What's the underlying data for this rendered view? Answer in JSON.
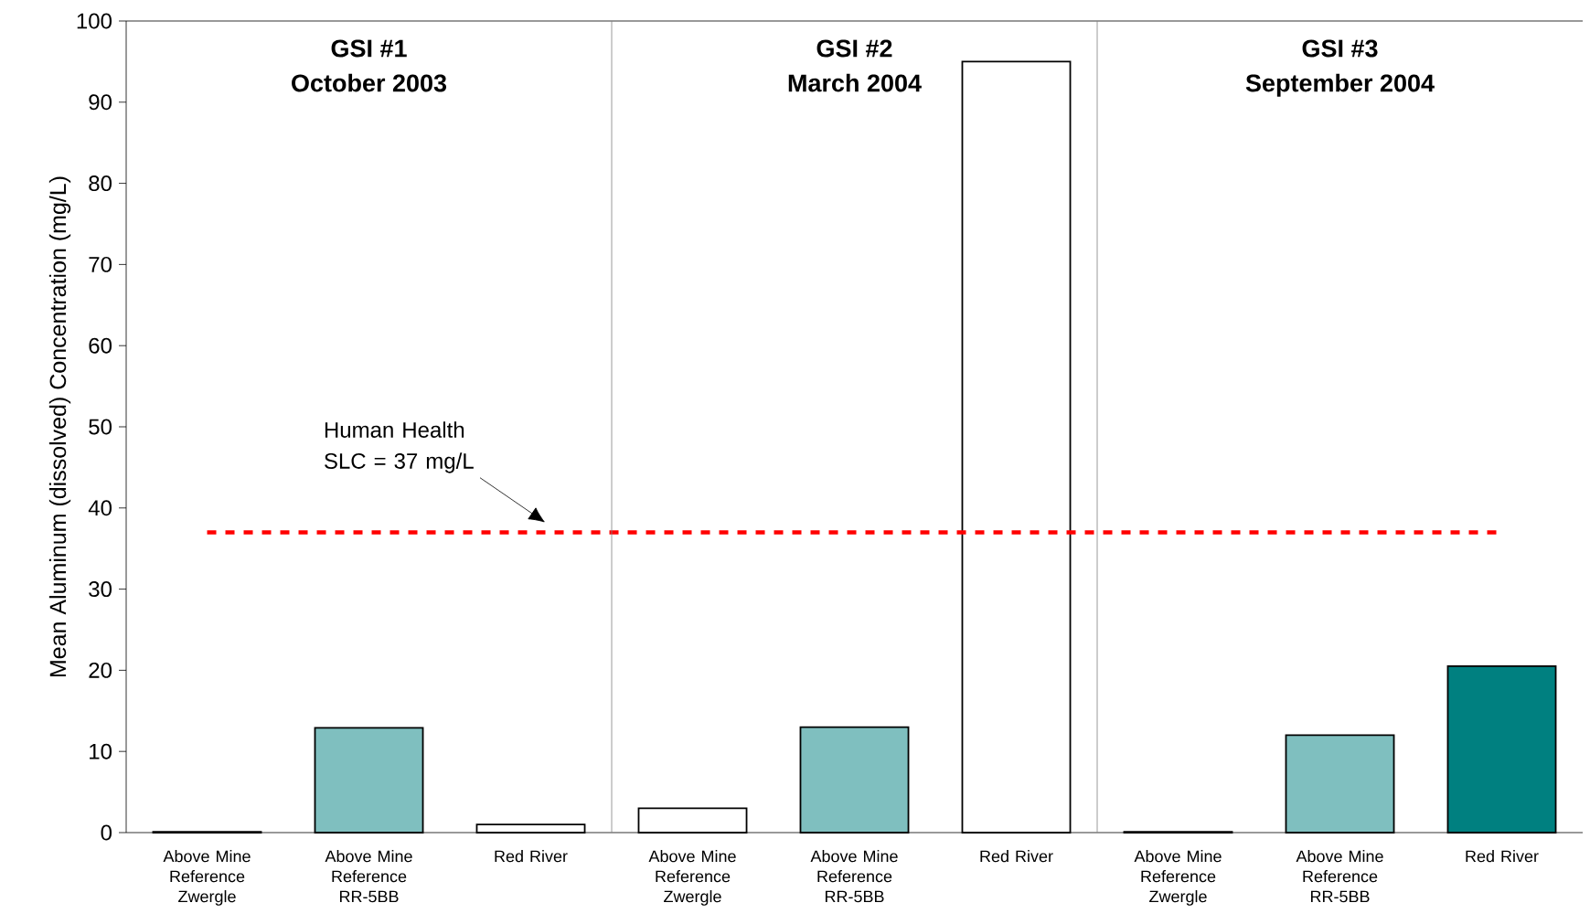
{
  "chart_data": {
    "type": "bar",
    "ylabel": "Mean Aluminum (dissolved) Concentration (mg/L)",
    "categories": [
      "Above Mine Reference Zwergle",
      "Above Mine Reference RR-5BB",
      "Red River",
      "Above Mine Reference Zwergle",
      "Above Mine Reference RR-5BB",
      "Red River",
      "Above Mine Reference Zwergle",
      "Above Mine Reference RR-5BB",
      "Red River"
    ],
    "values": [
      0.1,
      12.9,
      1.0,
      3.0,
      13.0,
      95.0,
      0.1,
      12.0,
      20.5
    ],
    "colors": [
      "#ffffff",
      "#7fbfbf",
      "#ffffff",
      "#ffffff",
      "#7fbfbf",
      "#ffffff",
      "#ffffff",
      "#7fbfbf",
      "#008080"
    ],
    "ylim": [
      0,
      100
    ],
    "yticks": [
      0,
      10,
      20,
      30,
      40,
      50,
      60,
      70,
      80,
      90,
      100
    ],
    "grid": false,
    "ref_lines": [
      {
        "axis": "y",
        "value": 37,
        "color": "#ff0000",
        "line_style": "dashed"
      }
    ],
    "annotations": [
      "GSI #1",
      "October 2003",
      "GSI #2",
      "March 2004",
      "GSI #3",
      "September 2004",
      "Human Health SLC = 37 mg/L"
    ]
  }
}
